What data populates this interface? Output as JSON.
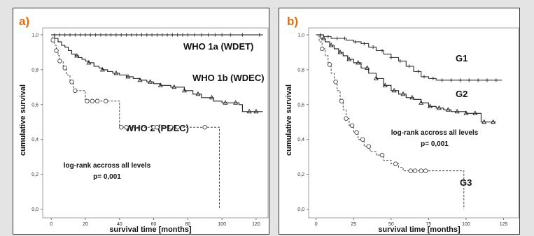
{
  "chart_data": [
    {
      "type": "line",
      "panel_label": "a)",
      "xlabel": "survival time [months]",
      "ylabel": "cumulative survival",
      "xlim": [
        -5,
        127
      ],
      "ylim": [
        -0.05,
        1.04
      ],
      "x_ticks": [
        "0",
        "20",
        "40",
        "60",
        "80",
        "100",
        "120"
      ],
      "y_ticks": [
        "0,0",
        "0,2",
        "0,4",
        "0,6",
        "0,8",
        "1,0"
      ],
      "annotation_lines": [
        "log-rank accross all levels",
        "p= 0,001"
      ],
      "grid": false,
      "series": [
        {
          "name": "WHO 1a (WDET)",
          "color": "#333333",
          "dashed": false,
          "marker": "plus",
          "x": [
            0,
            124
          ],
          "y": [
            1.0,
            1.0
          ],
          "censored_x": [
            2,
            5,
            8,
            11,
            14,
            17,
            20,
            23,
            26,
            29,
            32,
            35,
            38,
            41,
            44,
            47,
            50,
            53,
            56,
            59,
            62,
            65,
            68,
            71,
            74,
            77,
            80,
            84,
            88,
            92,
            96,
            100,
            105,
            112,
            122
          ]
        },
        {
          "name": "WHO 1b (WDEC)",
          "color": "#222222",
          "dashed": false,
          "marker": "triangle",
          "x": [
            0,
            2,
            4,
            6,
            8,
            10,
            12,
            14,
            16,
            18,
            20,
            22,
            25,
            28,
            30,
            33,
            36,
            40,
            44,
            48,
            52,
            56,
            60,
            64,
            70,
            74,
            78,
            83,
            88,
            95,
            100,
            105,
            110,
            112,
            118,
            124
          ],
          "y": [
            1.0,
            0.98,
            0.96,
            0.94,
            0.93,
            0.91,
            0.89,
            0.88,
            0.87,
            0.86,
            0.85,
            0.84,
            0.82,
            0.81,
            0.8,
            0.79,
            0.78,
            0.77,
            0.76,
            0.75,
            0.74,
            0.73,
            0.72,
            0.71,
            0.7,
            0.7,
            0.68,
            0.66,
            0.64,
            0.62,
            0.61,
            0.61,
            0.6,
            0.56,
            0.56,
            0.56
          ],
          "censored_x": [
            15,
            22,
            30,
            38,
            45,
            52,
            58,
            64,
            72,
            78,
            86,
            94,
            102,
            108,
            116,
            120
          ]
        },
        {
          "name": "WHO 2 (PDEC)",
          "color": "#444444",
          "dashed": true,
          "marker": "circle",
          "x": [
            0,
            1,
            2,
            3,
            4,
            5,
            7,
            9,
            11,
            13,
            16,
            20,
            25,
            30,
            36,
            40,
            45,
            55,
            65,
            75,
            85,
            90,
            98,
            98.5
          ],
          "y": [
            1.0,
            0.97,
            0.94,
            0.91,
            0.88,
            0.85,
            0.81,
            0.77,
            0.73,
            0.68,
            0.68,
            0.62,
            0.62,
            0.62,
            0.62,
            0.47,
            0.47,
            0.47,
            0.47,
            0.47,
            0.47,
            0.47,
            0.47,
            0.0
          ],
          "censored_x": [
            1,
            3,
            5,
            8,
            12,
            14,
            21,
            24,
            27,
            32,
            41,
            44,
            60,
            62,
            70,
            74,
            90
          ]
        }
      ]
    },
    {
      "type": "line",
      "panel_label": "b)",
      "xlabel": "survival time [months]",
      "ylabel": "cumulative survival",
      "xlim": [
        -5,
        135
      ],
      "ylim": [
        -0.05,
        1.04
      ],
      "x_ticks": [
        "0",
        "25",
        "50",
        "75",
        "100",
        "125"
      ],
      "y_ticks": [
        "0,0",
        "0,2",
        "0,4",
        "0,6",
        "0,8",
        "1,0"
      ],
      "annotation_lines": [
        "log-rank accross all levels",
        "p= 0,001"
      ],
      "grid": false,
      "series": [
        {
          "name": "G1",
          "color": "#333333",
          "dashed": false,
          "marker": "plus",
          "x": [
            0,
            5,
            10,
            15,
            20,
            25,
            30,
            35,
            40,
            45,
            50,
            55,
            60,
            65,
            70,
            75,
            80,
            90,
            100,
            110,
            118,
            124
          ],
          "y": [
            1.0,
            0.99,
            0.98,
            0.98,
            0.97,
            0.96,
            0.95,
            0.93,
            0.91,
            0.89,
            0.87,
            0.85,
            0.82,
            0.79,
            0.76,
            0.75,
            0.74,
            0.74,
            0.74,
            0.74,
            0.74,
            0.74
          ],
          "censored_x": [
            3,
            8,
            14,
            19,
            26,
            32,
            38,
            44,
            50,
            56,
            62,
            68,
            72,
            78,
            84,
            90,
            96,
            102,
            108,
            114,
            120
          ]
        },
        {
          "name": "G2",
          "color": "#222222",
          "dashed": false,
          "marker": "triangle",
          "x": [
            0,
            3,
            6,
            9,
            12,
            15,
            18,
            21,
            25,
            30,
            35,
            40,
            45,
            50,
            55,
            60,
            65,
            70,
            75,
            80,
            85,
            90,
            95,
            100,
            105,
            110,
            115,
            120
          ],
          "y": [
            1.0,
            0.98,
            0.96,
            0.94,
            0.92,
            0.9,
            0.88,
            0.86,
            0.84,
            0.81,
            0.78,
            0.75,
            0.71,
            0.68,
            0.66,
            0.64,
            0.63,
            0.61,
            0.59,
            0.58,
            0.57,
            0.56,
            0.56,
            0.55,
            0.55,
            0.5,
            0.5,
            0.5
          ],
          "censored_x": [
            5,
            10,
            16,
            22,
            28,
            34,
            40,
            46,
            52,
            58,
            64,
            70,
            76,
            82,
            88,
            94,
            100,
            106,
            112,
            118
          ]
        },
        {
          "name": "G3",
          "color": "#444444",
          "dashed": true,
          "marker": "circle",
          "x": [
            0,
            2,
            4,
            6,
            8,
            10,
            12,
            14,
            16,
            18,
            20,
            22,
            25,
            28,
            32,
            36,
            40,
            45,
            50,
            55,
            58,
            62,
            70,
            80,
            90,
            98,
            98.5
          ],
          "y": [
            1.0,
            0.96,
            0.92,
            0.88,
            0.83,
            0.78,
            0.73,
            0.68,
            0.62,
            0.57,
            0.52,
            0.48,
            0.44,
            0.4,
            0.36,
            0.33,
            0.31,
            0.28,
            0.26,
            0.24,
            0.22,
            0.22,
            0.22,
            0.22,
            0.22,
            0.22,
            0.0
          ],
          "censored_x": [
            4,
            9,
            13,
            17,
            20,
            24,
            27,
            31,
            35,
            44,
            53,
            63,
            66,
            70,
            73
          ]
        }
      ]
    }
  ]
}
